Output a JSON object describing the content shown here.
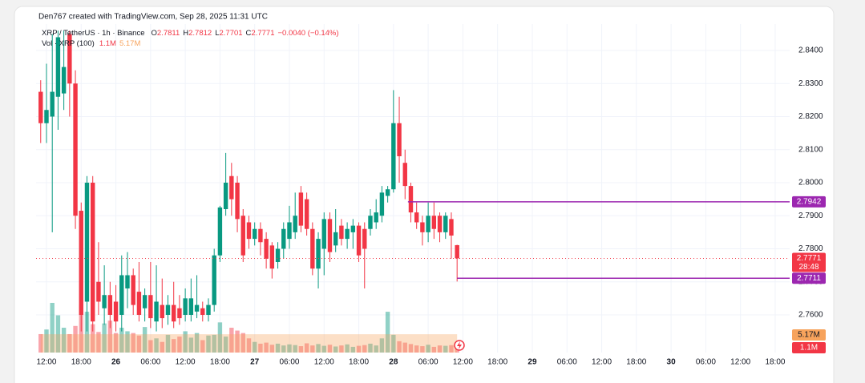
{
  "header": {
    "credit": "Den767 created with TradingView.com, Sep 28, 2025 11:31 UTC"
  },
  "chart_data": {
    "type": "candlestick",
    "symbol": "XRP / TetherUS · 1h · Binance",
    "ohlc_labels": [
      "O",
      "H",
      "L",
      "C"
    ],
    "change": "−0.0040 (−0.14%)",
    "volume_title": "Vol · XRP (100)",
    "volume_last_label": "1.1M",
    "volume_ma": {
      "value": 5.17,
      "label": "5.17M"
    },
    "countdown": "28:48",
    "up_color": "#089981",
    "down_color": "#f23645",
    "level_color": "#9c27b0",
    "ma_color": "#f7a35c",
    "x": [
      -1,
      0,
      1,
      2,
      3,
      4,
      5,
      6,
      7,
      8,
      9,
      10,
      11,
      12,
      13,
      14,
      15,
      16,
      17,
      18,
      19,
      20,
      21,
      22,
      23,
      24,
      25,
      26,
      27,
      28,
      29,
      30,
      31,
      32,
      33,
      34,
      35,
      36,
      37,
      38,
      39,
      40,
      41,
      42,
      43,
      44,
      45,
      46,
      47,
      48,
      49,
      50,
      51,
      52,
      53,
      54,
      55,
      56,
      57,
      58,
      59,
      60,
      61,
      62,
      63,
      64,
      65,
      66,
      67,
      68,
      69,
      70,
      71
    ],
    "open": [
      2.8275,
      2.818,
      2.82,
      2.826,
      2.827,
      2.845,
      2.83,
      2.7915,
      2.764,
      2.8,
      2.77,
      2.762,
      2.766,
      2.764,
      2.76,
      2.768,
      2.772,
      2.767,
      2.762,
      2.766,
      2.758,
      2.763,
      2.76,
      2.763,
      2.762,
      2.76,
      2.76,
      2.761,
      2.762,
      2.76,
      2.763,
      2.778,
      2.792,
      2.802,
      2.8,
      2.79,
      2.788,
      2.783,
      2.786,
      2.783,
      2.781,
      2.776,
      2.78,
      2.783,
      2.785,
      2.797,
      2.795,
      2.786,
      2.774,
      2.78,
      2.789,
      2.781,
      2.787,
      2.783,
      2.785,
      2.787,
      2.786,
      2.786,
      2.788,
      2.79,
      2.796,
      2.798,
      2.818,
      2.806,
      2.799,
      2.791,
      2.788,
      2.785,
      2.79,
      2.79,
      2.785,
      2.789,
      2.7811
    ],
    "high": [
      2.831,
      2.836,
      2.845,
      2.846,
      2.846,
      2.846,
      2.834,
      2.794,
      2.802,
      2.802,
      2.782,
      2.775,
      2.77,
      2.769,
      2.778,
      2.779,
      2.774,
      2.776,
      2.768,
      2.776,
      2.775,
      2.771,
      2.766,
      2.77,
      2.766,
      2.768,
      2.771,
      2.772,
      2.764,
      2.765,
      2.78,
      2.793,
      2.809,
      2.806,
      2.802,
      2.792,
      2.79,
      2.788,
      2.788,
      2.785,
      2.782,
      2.782,
      2.788,
      2.793,
      2.797,
      2.799,
      2.797,
      2.788,
      2.785,
      2.791,
      2.791,
      2.792,
      2.789,
      2.788,
      2.789,
      2.788,
      2.788,
      2.792,
      2.795,
      2.799,
      2.799,
      2.828,
      2.826,
      2.81,
      2.8,
      2.794,
      2.79,
      2.794,
      2.794,
      2.791,
      2.791,
      2.791,
      2.7812
    ],
    "low": [
      2.812,
      2.812,
      2.785,
      2.816,
      2.822,
      2.82,
      2.786,
      2.755,
      2.755,
      2.755,
      2.76,
      2.757,
      2.756,
      2.755,
      2.755,
      2.762,
      2.76,
      2.758,
      2.758,
      2.756,
      2.755,
      2.756,
      2.757,
      2.756,
      2.757,
      2.758,
      2.758,
      2.759,
      2.758,
      2.758,
      2.761,
      2.776,
      2.79,
      2.79,
      2.785,
      2.776,
      2.78,
      2.781,
      2.778,
      2.774,
      2.771,
      2.774,
      2.777,
      2.78,
      2.783,
      2.785,
      2.784,
      2.772,
      2.768,
      2.772,
      2.776,
      2.779,
      2.781,
      2.78,
      2.78,
      2.776,
      2.768,
      2.784,
      2.786,
      2.788,
      2.794,
      2.797,
      2.8,
      2.795,
      2.788,
      2.786,
      2.781,
      2.782,
      2.783,
      2.782,
      2.783,
      2.777,
      2.7701
    ],
    "close": [
      2.818,
      2.822,
      2.8275,
      2.844,
      2.835,
      2.83,
      2.79,
      2.76,
      2.8,
      2.758,
      2.764,
      2.766,
      2.76,
      2.758,
      2.772,
      2.772,
      2.763,
      2.76,
      2.766,
      2.759,
      2.764,
      2.759,
      2.763,
      2.758,
      2.759,
      2.765,
      2.765,
      2.763,
      2.76,
      2.763,
      2.778,
      2.7925,
      2.8,
      2.795,
      2.789,
      2.778,
      2.783,
      2.786,
      2.782,
      2.777,
      2.774,
      2.78,
      2.786,
      2.788,
      2.79,
      2.787,
      2.786,
      2.774,
      2.783,
      2.789,
      2.779,
      2.785,
      2.783,
      2.786,
      2.787,
      2.778,
      2.78,
      2.79,
      2.791,
      2.797,
      2.798,
      2.818,
      2.808,
      2.799,
      2.791,
      2.788,
      2.785,
      2.79,
      2.786,
      2.785,
      2.79,
      2.784,
      2.7771
    ],
    "volumes": [
      5.2,
      6.5,
      14.0,
      10.5,
      7.0,
      5.2,
      7.5,
      13.5,
      11.5,
      8.0,
      5.8,
      8.2,
      9.0,
      5.5,
      7.0,
      6.0,
      5.5,
      4.8,
      7.2,
      3.5,
      4.0,
      3.0,
      5.0,
      3.8,
      4.5,
      6.0,
      4.2,
      5.5,
      3.5,
      4.8,
      5.0,
      8.5,
      4.5,
      7.0,
      6.2,
      5.5,
      4.0,
      3.0,
      2.5,
      2.8,
      2.2,
      2.5,
      2.0,
      2.3,
      2.1,
      1.8,
      2.6,
      2.0,
      2.4,
      1.9,
      2.2,
      1.7,
      2.0,
      2.3,
      1.6,
      1.9,
      2.1,
      2.5,
      2.0,
      4.0,
      11.5,
      5.0,
      3.2,
      2.8,
      2.4,
      2.0,
      1.8,
      2.2,
      1.6,
      2.0,
      1.9,
      2.1,
      1.1
    ],
    "levels": [
      {
        "value": 2.7942,
        "start": 62.5
      },
      {
        "value": 2.7711,
        "start": 71
      }
    ],
    "xlim": [
      -1.8,
      128.5
    ],
    "xticks": [
      {
        "value": 0,
        "label": "12:00"
      },
      {
        "value": 6,
        "label": "18:00"
      },
      {
        "value": 12,
        "label": "26"
      },
      {
        "value": 18,
        "label": "06:00"
      },
      {
        "value": 24,
        "label": "12:00"
      },
      {
        "value": 30,
        "label": "18:00"
      },
      {
        "value": 36,
        "label": "27"
      },
      {
        "value": 42,
        "label": "06:00"
      },
      {
        "value": 48,
        "label": "12:00"
      },
      {
        "value": 54,
        "label": "18:00"
      },
      {
        "value": 60,
        "label": "28"
      },
      {
        "value": 66,
        "label": "06:00"
      },
      {
        "value": 72,
        "label": "12:00"
      },
      {
        "value": 78,
        "label": "18:00"
      },
      {
        "value": 84,
        "label": "29"
      },
      {
        "value": 90,
        "label": "06:00"
      },
      {
        "value": 96,
        "label": "12:00"
      },
      {
        "value": 102,
        "label": "18:00"
      },
      {
        "value": 108,
        "label": "30"
      },
      {
        "value": 114,
        "label": "06:00"
      },
      {
        "value": 120,
        "label": "12:00"
      },
      {
        "value": 126,
        "label": "18:00"
      }
    ],
    "ylim": [
      2.7486,
      2.848
    ],
    "yticks": [
      {
        "value": 2.76,
        "label": "2.7600"
      },
      {
        "value": 2.77,
        "label": "2.7700"
      },
      {
        "value": 2.78,
        "label": "2.7800"
      },
      {
        "value": 2.79,
        "label": "2.7900"
      },
      {
        "value": 2.8,
        "label": "2.8000"
      },
      {
        "value": 2.81,
        "label": "2.8100"
      },
      {
        "value": 2.82,
        "label": "2.8200"
      },
      {
        "value": 2.83,
        "label": "2.8300"
      },
      {
        "value": 2.84,
        "label": "2.8400"
      }
    ],
    "grid": true
  }
}
